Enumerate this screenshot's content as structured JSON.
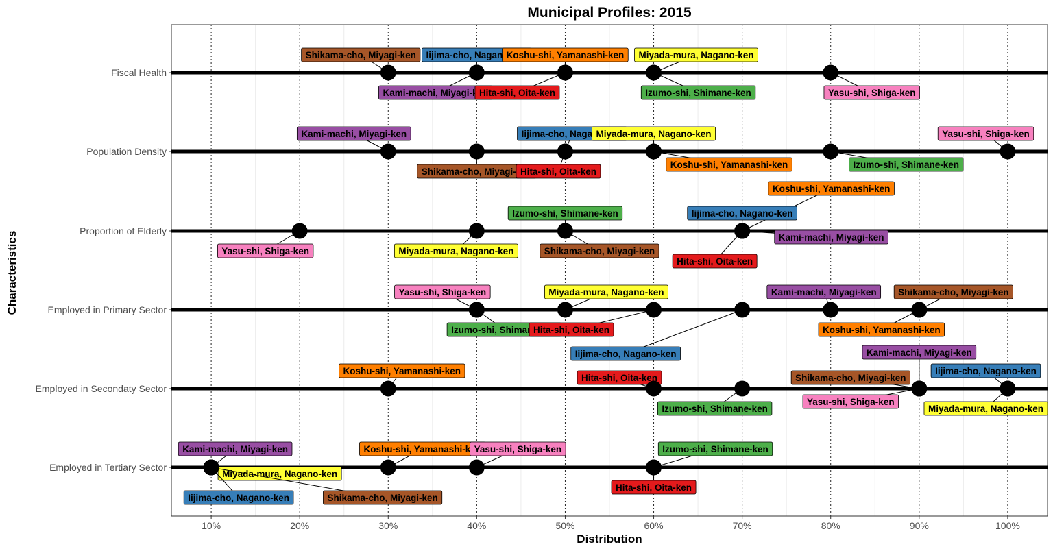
{
  "chart_data": {
    "type": "scatter",
    "title": "Municipal Profiles: 2015",
    "xlabel": "Distribution",
    "ylabel": "Characteristics",
    "xlim": [
      0.055,
      1.045
    ],
    "x_ticks": [
      0.1,
      0.2,
      0.3,
      0.4,
      0.5,
      0.6,
      0.7,
      0.8,
      0.9,
      1.0
    ],
    "x_tick_labels": [
      "10%",
      "20%",
      "30%",
      "40%",
      "50%",
      "60%",
      "70%",
      "80%",
      "90%",
      "100%"
    ],
    "categories": [
      "Fiscal Health",
      "Population Density",
      "Proportion of Elderly",
      "Employed in Primary Sector",
      "Employed in Secondaty Sector",
      "Employed in Tertiary Sector"
    ],
    "grid": true,
    "colors": {
      "Hita-shi, Oita-ken": "#e41a1c",
      "Iijima-cho, Nagano-ken": "#377eb8",
      "Izumo-shi, Shimane-ken": "#4daf4a",
      "Kami-machi, Miyagi-ken": "#984ea3",
      "Koshu-shi, Yamanashi-ken": "#ff7f00",
      "Miyada-mura, Nagano-ken": "#ffff33",
      "Shikama-cho, Miyagi-ken": "#a65628",
      "Yasu-shi, Shiga-ken": "#f781bf"
    },
    "series": [
      {
        "name": "Fiscal Health",
        "points": [
          {
            "municipality": "Shikama-cho, Miyagi-ken",
            "value": 0.3
          },
          {
            "municipality": "Kami-machi, Miyagi-ken",
            "value": 0.4
          },
          {
            "municipality": "Iijima-cho, Nagano-ken",
            "value": 0.4
          },
          {
            "municipality": "Hita-shi, Oita-ken",
            "value": 0.5
          },
          {
            "municipality": "Koshu-shi, Yamanashi-ken",
            "value": 0.5
          },
          {
            "municipality": "Miyada-mura, Nagano-ken",
            "value": 0.6
          },
          {
            "municipality": "Izumo-shi, Shimane-ken",
            "value": 0.6
          },
          {
            "municipality": "Yasu-shi, Shiga-ken",
            "value": 0.8
          }
        ]
      },
      {
        "name": "Population Density",
        "points": [
          {
            "municipality": "Kami-machi, Miyagi-ken",
            "value": 0.3
          },
          {
            "municipality": "Shikama-cho, Miyagi-ken",
            "value": 0.4
          },
          {
            "municipality": "Iijima-cho, Nagano-ken",
            "value": 0.5
          },
          {
            "municipality": "Hita-shi, Oita-ken",
            "value": 0.5
          },
          {
            "municipality": "Miyada-mura, Nagano-ken",
            "value": 0.6
          },
          {
            "municipality": "Koshu-shi, Yamanashi-ken",
            "value": 0.6
          },
          {
            "municipality": "Izumo-shi, Shimane-ken",
            "value": 0.8
          },
          {
            "municipality": "Yasu-shi, Shiga-ken",
            "value": 1.0
          }
        ]
      },
      {
        "name": "Proportion of Elderly",
        "points": [
          {
            "municipality": "Yasu-shi, Shiga-ken",
            "value": 0.2
          },
          {
            "municipality": "Izumo-shi, Shimane-ken",
            "value": 0.5
          },
          {
            "municipality": "Miyada-mura, Nagano-ken",
            "value": 0.4
          },
          {
            "municipality": "Shikama-cho, Miyagi-ken",
            "value": 0.5
          },
          {
            "municipality": "Koshu-shi, Yamanashi-ken",
            "value": 0.7
          },
          {
            "municipality": "Iijima-cho, Nagano-ken",
            "value": 0.7
          },
          {
            "municipality": "Kami-machi, Miyagi-ken",
            "value": 0.7
          },
          {
            "municipality": "Hita-shi, Oita-ken",
            "value": 0.7
          }
        ]
      },
      {
        "name": "Employed in Primary Sector",
        "points": [
          {
            "municipality": "Yasu-shi, Shiga-ken",
            "value": 0.4
          },
          {
            "municipality": "Izumo-shi, Shimane-ken",
            "value": 0.4
          },
          {
            "municipality": "Miyada-mura, Nagano-ken",
            "value": 0.5
          },
          {
            "municipality": "Hita-shi, Oita-ken",
            "value": 0.6
          },
          {
            "municipality": "Iijima-cho, Nagano-ken",
            "value": 0.7
          },
          {
            "municipality": "Kami-machi, Miyagi-ken",
            "value": 0.8
          },
          {
            "municipality": "Shikama-cho, Miyagi-ken",
            "value": 0.9
          },
          {
            "municipality": "Koshu-shi, Yamanashi-ken",
            "value": 0.9
          }
        ]
      },
      {
        "name": "Employed in Secondaty Sector",
        "points": [
          {
            "municipality": "Koshu-shi, Yamanashi-ken",
            "value": 0.3
          },
          {
            "municipality": "Hita-shi, Oita-ken",
            "value": 0.6
          },
          {
            "municipality": "Izumo-shi, Shimane-ken",
            "value": 0.7
          },
          {
            "municipality": "Kami-machi, Miyagi-ken",
            "value": 0.9
          },
          {
            "municipality": "Shikama-cho, Miyagi-ken",
            "value": 0.9
          },
          {
            "municipality": "Yasu-shi, Shiga-ken",
            "value": 0.9
          },
          {
            "municipality": "Iijima-cho, Nagano-ken",
            "value": 1.0
          },
          {
            "municipality": "Miyada-mura, Nagano-ken",
            "value": 1.0
          }
        ]
      },
      {
        "name": "Employed in Tertiary Sector",
        "points": [
          {
            "municipality": "Kami-machi, Miyagi-ken",
            "value": 0.1
          },
          {
            "municipality": "Miyada-mura, Nagano-ken",
            "value": 0.1
          },
          {
            "municipality": "Iijima-cho, Nagano-ken",
            "value": 0.1
          },
          {
            "municipality": "Shikama-cho, Miyagi-ken",
            "value": 0.1
          },
          {
            "municipality": "Koshu-shi, Yamanashi-ken",
            "value": 0.3
          },
          {
            "municipality": "Yasu-shi, Shiga-ken",
            "value": 0.4
          },
          {
            "municipality": "Izumo-shi, Shimane-ken",
            "value": 0.6
          },
          {
            "municipality": "Hita-shi, Oita-ken",
            "value": 0.6
          }
        ]
      }
    ]
  }
}
